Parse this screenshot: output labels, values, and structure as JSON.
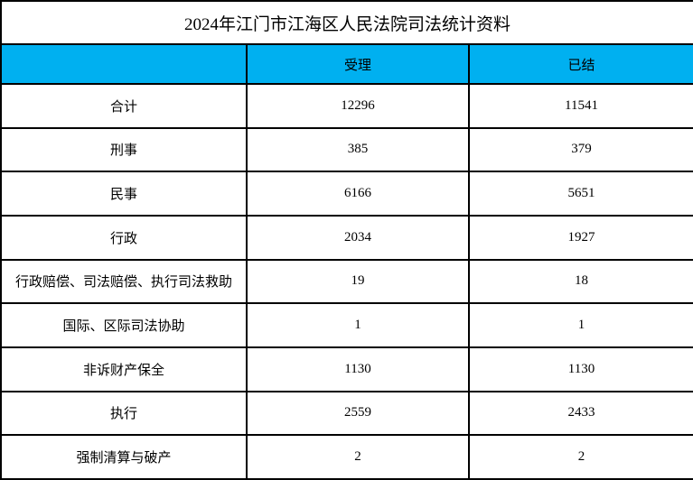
{
  "title": "2024年江门市江海区人民法院司法统计资料",
  "table": {
    "columns": [
      "",
      "受理",
      "已结"
    ],
    "rows": [
      {
        "label": "合计",
        "accepted": "12296",
        "concluded": "11541"
      },
      {
        "label": "刑事",
        "accepted": "385",
        "concluded": "379"
      },
      {
        "label": "民事",
        "accepted": "6166",
        "concluded": "5651"
      },
      {
        "label": "行政",
        "accepted": "2034",
        "concluded": "1927"
      },
      {
        "label": "行政赔偿、司法赔偿、执行司法救助",
        "accepted": "19",
        "concluded": "18"
      },
      {
        "label": "国际、区际司法协助",
        "accepted": "1",
        "concluded": "1"
      },
      {
        "label": "非诉财产保全",
        "accepted": "1130",
        "concluded": "1130"
      },
      {
        "label": "执行",
        "accepted": "2559",
        "concluded": "2433"
      },
      {
        "label": "强制清算与破产",
        "accepted": "2",
        "concluded": "2"
      }
    ]
  },
  "colors": {
    "header_bg": "#00B0F0",
    "border": "#000000"
  }
}
